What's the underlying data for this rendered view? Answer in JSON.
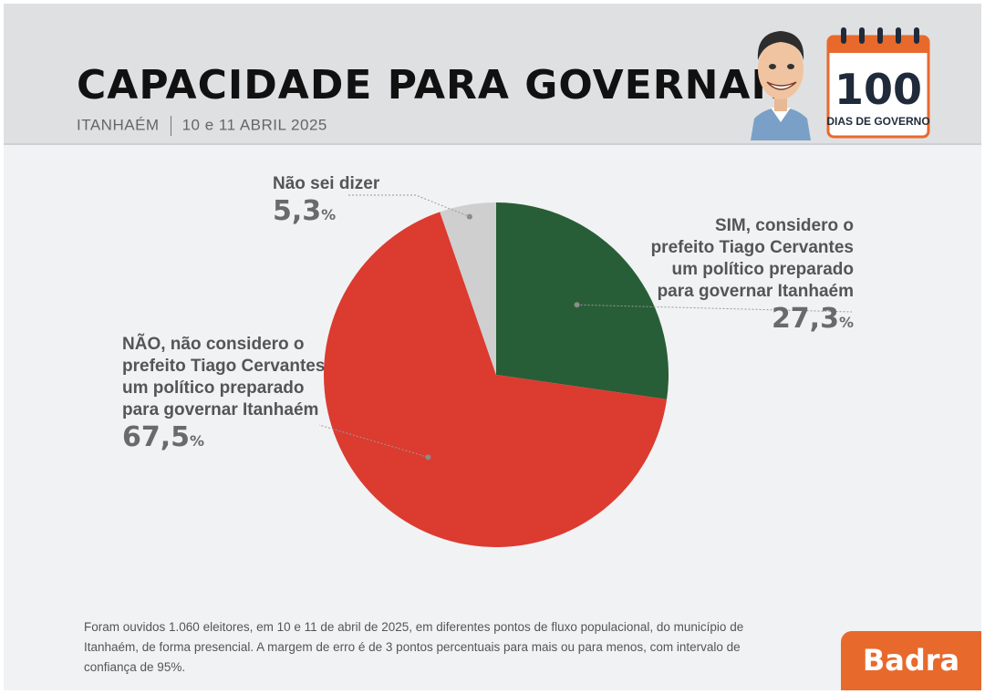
{
  "header": {
    "title": "CAPACIDADE PARA GOVERNAR",
    "location": "ITANHAÉM",
    "date": "10 e 11 ABRIL 2025"
  },
  "badge": {
    "number": "100",
    "label": "DIAS DE GOVERNO",
    "color": "#e8692c",
    "icon": "calendar-icon"
  },
  "mascot": {
    "icon": "mayor-caricature-icon"
  },
  "chart_data": {
    "type": "pie",
    "start_angle_deg": 0,
    "direction": "clockwise",
    "slices": [
      {
        "label": "SIM, considero o\nprefeito Tiago Cervantes\num político preparado\npara governar Itanhaém",
        "value": 27.3,
        "display": "27,3",
        "color": "#285e37"
      },
      {
        "label": "NÃO, não considero o\nprefeito Tiago Cervantes\num político preparado\npara governar Itanhaém",
        "value": 67.5,
        "display": "67,5",
        "color": "#dc3b30"
      },
      {
        "label": "Não sei dizer",
        "value": 5.3,
        "display": "5,3",
        "color": "#cfcfcf"
      }
    ],
    "unit": "%"
  },
  "footnote": "Foram ouvidos 1.060 eleitores, em 10 e 11 de abril de 2025, em diferentes pontos de fluxo populacional, do município de Itanhaém, de forma presencial. A margem de erro é de 3 pontos percentuais para mais ou para menos, com intervalo de confiança de 95%.",
  "brand": {
    "name": "Badra",
    "color": "#e8692c"
  }
}
